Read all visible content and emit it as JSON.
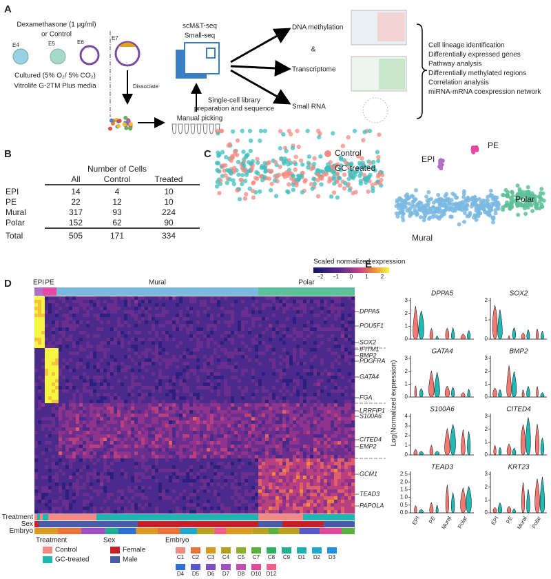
{
  "panel_a": {
    "label": "A",
    "treatment": [
      "Dexamethasone (1 μg/ml)",
      "or Control"
    ],
    "stages": [
      "E4",
      "E5",
      "E6",
      "E7"
    ],
    "culture": [
      "Cultured (5% O₂/ 5% CO₂)",
      "Vitrolife G-2TM Plus media"
    ],
    "dissociate": "Dissociate",
    "picking": "Manual picking",
    "seq": [
      "scM&T-seq",
      "Small-seq"
    ],
    "library": [
      "Single-cell library",
      "preparation and sequence"
    ],
    "outputs": [
      "DNA methylation",
      "Transcriptome",
      "Small RNA"
    ],
    "amp": "&",
    "analyses": [
      "Cell lineage identification",
      "Differentially expressed genes",
      "Pathway analysis",
      "Differentially methylated regions",
      "Correlation analysis",
      "miRNA-mRNA coexpression network"
    ]
  },
  "panel_b": {
    "label": "B",
    "title": "Number of Cells",
    "headers": [
      "All",
      "Control",
      "Treated"
    ],
    "rows": [
      [
        "EPI",
        14,
        4,
        10
      ],
      [
        "PE",
        22,
        12,
        10
      ],
      [
        "Mural",
        317,
        93,
        224
      ],
      [
        "Polar",
        152,
        62,
        90
      ]
    ],
    "total": [
      "Total",
      505,
      171,
      334
    ]
  },
  "panel_c": {
    "label": "C",
    "legend": [
      "Control",
      "GC-treated"
    ],
    "clusters": [
      "EPI",
      "PE",
      "Polar",
      "Mural"
    ]
  },
  "panel_d": {
    "label": "D",
    "colorbar_title": "Scaled normalized expression",
    "colorbar_ticks": [
      "−2",
      "−1",
      "0",
      "1",
      "2"
    ],
    "groups": [
      "EPI",
      "PE",
      "Mural",
      "Polar"
    ],
    "genes": [
      "DPPA5",
      "POU5F1",
      "SOX2",
      "IFITM1",
      "BMP2",
      "PDGFRA",
      "GATA4",
      "FGA",
      "LRRFIP1",
      "S100A6",
      "CITED4",
      "EMP2",
      "GCM1",
      "TEAD3",
      "PAPOLA"
    ],
    "annotation_rows": [
      "Treatment",
      "Sex",
      "Embryo"
    ],
    "legend_treatment_title": "Treatment",
    "legend_treatment": [
      "Control",
      "GC-treated"
    ],
    "legend_sex_title": "Sex",
    "legend_sex": [
      "Female",
      "Male"
    ],
    "legend_embryo_title": "Embryo",
    "embryos": [
      "C1",
      "C2",
      "C3",
      "C4",
      "C5",
      "C7",
      "C8",
      "C9",
      "D1",
      "D2",
      "D3",
      "D4",
      "D5",
      "D6",
      "D7",
      "D8",
      "D10",
      "D12"
    ]
  },
  "panel_e": {
    "label": "E",
    "ylabel": "Log(Normalized expression)",
    "groups": [
      "EPI",
      "PE",
      "Mural",
      "Polar"
    ],
    "genes": [
      {
        "name": "DPPA5",
        "ticks": [
          "0",
          "1",
          "2",
          "3"
        ]
      },
      {
        "name": "SOX2",
        "ticks": [
          "0",
          "1",
          "2"
        ]
      },
      {
        "name": "GATA4",
        "ticks": [
          "0",
          "1",
          "2",
          "3"
        ]
      },
      {
        "name": "BMP2",
        "ticks": [
          "0",
          "1",
          "2",
          "3"
        ]
      },
      {
        "name": "S100A6",
        "ticks": [
          "0",
          "1",
          "2",
          "3",
          "4"
        ]
      },
      {
        "name": "CITED4",
        "ticks": [
          "0",
          "1",
          "2",
          "3"
        ]
      },
      {
        "name": "TEAD3",
        "ticks": [
          "0.0",
          "0.5",
          "1.0",
          "1.5",
          "2.0",
          "2.5"
        ]
      },
      {
        "name": "KRT23",
        "ticks": [
          "0",
          "1",
          "2",
          "3"
        ]
      }
    ]
  }
}
